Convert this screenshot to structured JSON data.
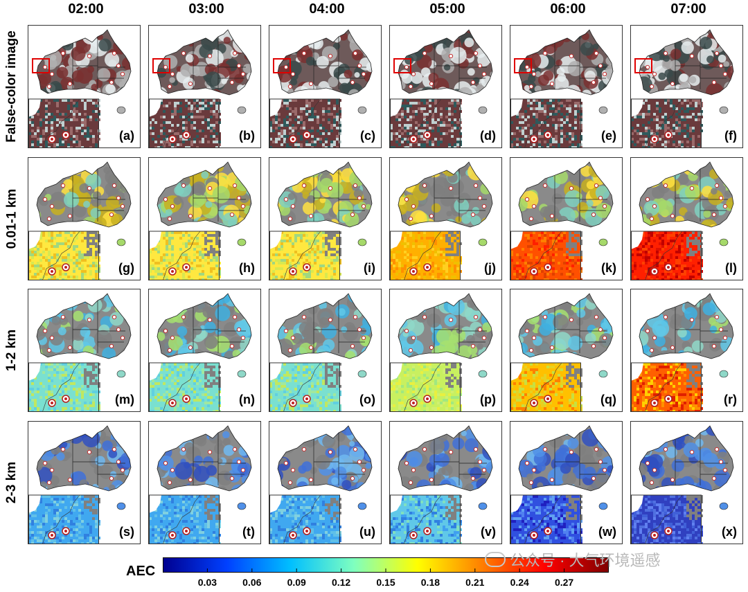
{
  "columns": [
    "02:00",
    "03:00",
    "04:00",
    "05:00",
    "06:00",
    "07:00"
  ],
  "rows": [
    {
      "title": "False-color image",
      "type": "false-color",
      "labels": [
        "(a)",
        "(b)",
        "(c)",
        "(d)",
        "(e)",
        "(f)"
      ]
    },
    {
      "title": "0.01-1 km",
      "type": "aec-low",
      "labels": [
        "(g)",
        "(h)",
        "(i)",
        "(j)",
        "(k)",
        "(l)"
      ]
    },
    {
      "title": "1-2 km",
      "type": "aec-mid",
      "labels": [
        "(m)",
        "(n)",
        "(o)",
        "(p)",
        "(q)",
        "(r)"
      ]
    },
    {
      "title": "2-3 km",
      "type": "aec-high",
      "labels": [
        "(s)",
        "(t)",
        "(u)",
        "(v)",
        "(w)",
        "(x)"
      ]
    }
  ],
  "colorbar": {
    "label": "AEC",
    "ticks": [
      "0.03",
      "0.06",
      "0.09",
      "0.12",
      "0.15",
      "0.18",
      "0.21",
      "0.24",
      "0.27"
    ],
    "colors": [
      "#00008f",
      "#0040ff",
      "#00bfff",
      "#7fffbf",
      "#ffff00",
      "#ff8000",
      "#ff0000",
      "#800000"
    ]
  },
  "watermark": "公众号 · 大气环境遥感"
}
